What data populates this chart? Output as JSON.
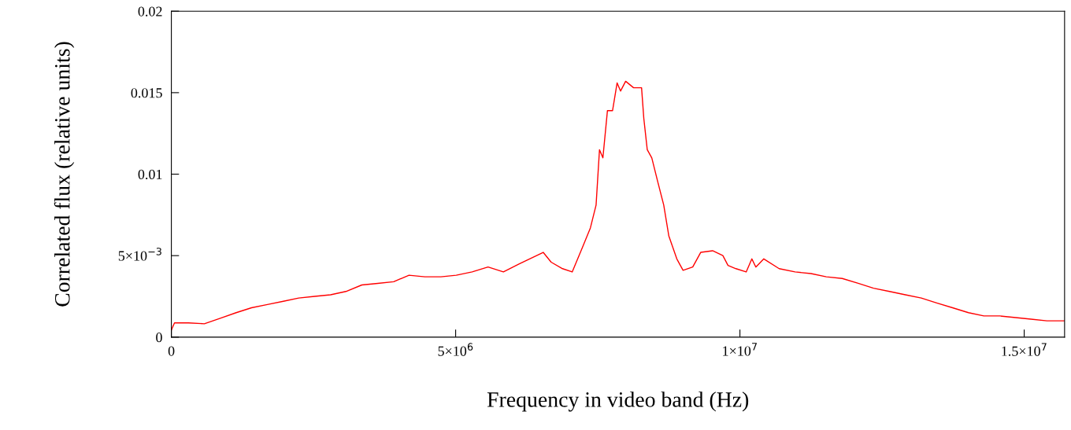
{
  "chart_data": {
    "type": "line",
    "xlabel": "Frequency in video band (Hz)",
    "ylabel": "Correlated flux (relative units)",
    "x": [
      0,
      55000,
      300000,
      580000,
      860000,
      1140000,
      1410000,
      1690000,
      1970000,
      2240000,
      2520000,
      2800000,
      3070000,
      3350000,
      3630000,
      3910000,
      4180000,
      4460000,
      4740000,
      5010000,
      5290000,
      5570000,
      5840000,
      6120000,
      6540000,
      6680000,
      6880000,
      7050000,
      7230000,
      7370000,
      7470000,
      7530000,
      7590000,
      7670000,
      7760000,
      7840000,
      7900000,
      7990000,
      8130000,
      8270000,
      8310000,
      8370000,
      8450000,
      8550000,
      8660000,
      8750000,
      8890000,
      9000000,
      9170000,
      9310000,
      9520000,
      9700000,
      9790000,
      9930000,
      10110000,
      10210000,
      10280000,
      10420000,
      10690000,
      10970000,
      11250000,
      11520000,
      11800000,
      12080000,
      12350000,
      12630000,
      12910000,
      13190000,
      13460000,
      13740000,
      14020000,
      14290000,
      14570000,
      14850000,
      15120000,
      15400000,
      15710000
    ],
    "series": [
      {
        "color": "#ff0000",
        "values": [
          0.00043,
          0.00087,
          0.00087,
          0.00082,
          0.00116,
          0.0015,
          0.0018,
          0.002,
          0.0022,
          0.0024,
          0.0025,
          0.0026,
          0.0028,
          0.0032,
          0.0033,
          0.0034,
          0.0038,
          0.0037,
          0.0037,
          0.0038,
          0.004,
          0.0043,
          0.004,
          0.0045,
          0.0052,
          0.0046,
          0.0042,
          0.004,
          0.0055,
          0.0067,
          0.0081,
          0.0115,
          0.011,
          0.0139,
          0.0139,
          0.0156,
          0.0151,
          0.0157,
          0.0153,
          0.0153,
          0.0134,
          0.0115,
          0.011,
          0.0096,
          0.0081,
          0.0062,
          0.0048,
          0.0041,
          0.0043,
          0.0052,
          0.0053,
          0.005,
          0.0044,
          0.0042,
          0.004,
          0.0048,
          0.0043,
          0.0048,
          0.0042,
          0.004,
          0.0039,
          0.0037,
          0.0036,
          0.0033,
          0.003,
          0.0028,
          0.0026,
          0.0024,
          0.0021,
          0.0018,
          0.0015,
          0.0013,
          0.0013,
          0.0012,
          0.0011,
          0.001,
          0.001
        ]
      }
    ],
    "xlim": [
      0,
      15710000
    ],
    "xticks": [
      0,
      {
        "value": 5000000,
        "label": "5×10$^{6}$"
      },
      {
        "value": 10000000,
        "label": "1×10$^{7}$"
      },
      {
        "value": 15000000,
        "label": "1.5×10$^{7}$"
      }
    ],
    "ylim": [
      0,
      0.02
    ],
    "yticks": [
      0,
      {
        "value": 0.005,
        "label": "5×10$^{−3}$"
      },
      0.01,
      0.015,
      0.02
    ],
    "grid": false,
    "marker": "none",
    "line_style": "solid"
  }
}
